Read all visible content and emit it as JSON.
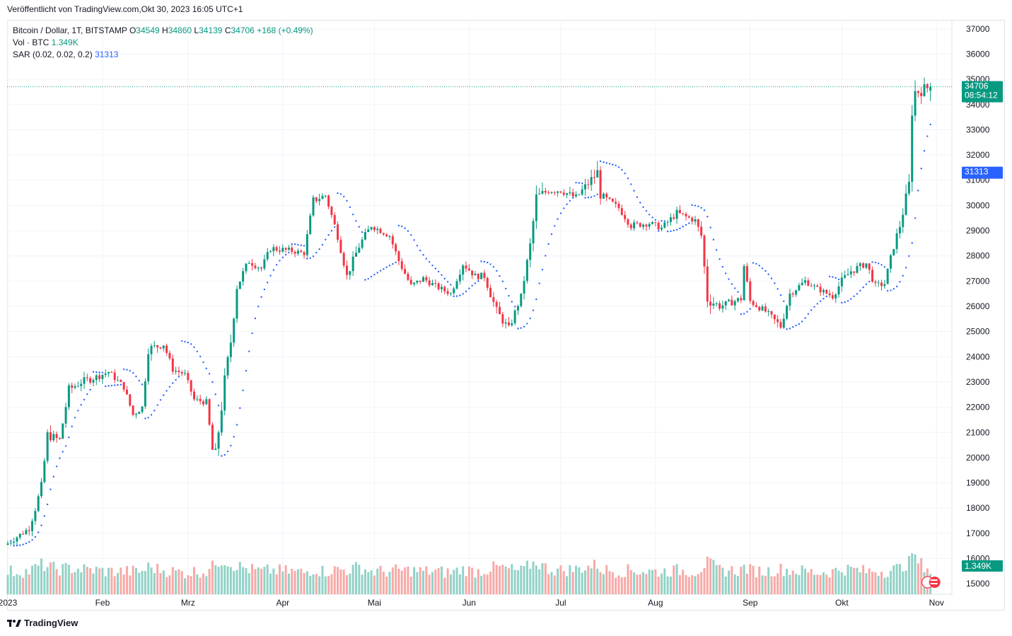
{
  "header": {
    "published": "Veröffentlicht von TradingView.com,Okt 30, 2023 16:05 UTC+1"
  },
  "legend": {
    "symbol": "Bitcoin / Dollar, 1T, BITSTAMP",
    "open_label": "O",
    "open": "34549",
    "high_label": "H",
    "high": "34860",
    "low_label": "L",
    "low": "34139",
    "close_label": "C",
    "close": "34706",
    "change": "+168 (+0.49%)",
    "vol_label": "Vol · BTC",
    "vol_value": "1.349K",
    "sar_label": "SAR (0.02, 0.02, 0.2)",
    "sar_value": "31313"
  },
  "price_labels": {
    "last": "34706",
    "countdown": "08:54:12",
    "sar": "31313",
    "volume": "1.349K"
  },
  "footer": {
    "brand": "TradingView"
  },
  "colors": {
    "up": "#089981",
    "down": "#f23645",
    "vol_up": "#92d2c7",
    "vol_down": "#f7a9a7",
    "sar": "#2962ff"
  },
  "chart_data": {
    "type": "candlestick",
    "title": "Bitcoin / Dollar, 1T, BITSTAMP",
    "y_ticks": [
      15000,
      16000,
      17000,
      18000,
      19000,
      20000,
      21000,
      22000,
      23000,
      24000,
      25000,
      26000,
      27000,
      28000,
      29000,
      30000,
      31000,
      32000,
      33000,
      34000,
      35000,
      36000,
      37000
    ],
    "x_ticks": [
      "2023",
      "Feb",
      "Mrz",
      "Apr",
      "Mai",
      "Jun",
      "Jul",
      "Aug",
      "Sep",
      "Okt",
      "Nov"
    ],
    "ylim": [
      14500,
      37500
    ],
    "anchors": [
      [
        "2023-01-01",
        16600,
        30
      ],
      [
        "2023-01-08",
        17200,
        30
      ],
      [
        "2023-01-12",
        18800,
        60
      ],
      [
        "2023-01-14",
        20900,
        50
      ],
      [
        "2023-01-18",
        20700,
        40
      ],
      [
        "2023-01-21",
        22700,
        45
      ],
      [
        "2023-01-25",
        23000,
        40
      ],
      [
        "2023-01-30",
        23200,
        35
      ],
      [
        "2023-02-03",
        23400,
        30
      ],
      [
        "2023-02-08",
        22800,
        30
      ],
      [
        "2023-02-11",
        21700,
        30
      ],
      [
        "2023-02-14",
        22000,
        30
      ],
      [
        "2023-02-16",
        24300,
        50
      ],
      [
        "2023-02-21",
        24500,
        35
      ],
      [
        "2023-02-24",
        23500,
        30
      ],
      [
        "2023-02-28",
        23300,
        25
      ],
      [
        "2023-03-03",
        22300,
        30
      ],
      [
        "2023-03-07",
        22200,
        30
      ],
      [
        "2023-03-09",
        20300,
        50
      ],
      [
        "2023-03-10",
        20100,
        70
      ],
      [
        "2023-03-13",
        23000,
        80
      ],
      [
        "2023-03-15",
        24600,
        60
      ],
      [
        "2023-03-17",
        26800,
        55
      ],
      [
        "2023-03-21",
        27800,
        40
      ],
      [
        "2023-03-25",
        27500,
        30
      ],
      [
        "2023-03-28",
        28300,
        35
      ],
      [
        "2023-04-04",
        28200,
        30
      ],
      [
        "2023-04-08",
        28100,
        25
      ],
      [
        "2023-04-11",
        30200,
        40
      ],
      [
        "2023-04-15",
        30400,
        30
      ],
      [
        "2023-04-19",
        28800,
        40
      ],
      [
        "2023-04-22",
        27200,
        35
      ],
      [
        "2023-04-26",
        28400,
        50
      ],
      [
        "2023-04-30",
        29200,
        30
      ],
      [
        "2023-05-06",
        28800,
        30
      ],
      [
        "2023-05-09",
        27800,
        35
      ],
      [
        "2023-05-13",
        26800,
        35
      ],
      [
        "2023-05-17",
        27100,
        30
      ],
      [
        "2023-05-21",
        26800,
        30
      ],
      [
        "2023-05-26",
        26500,
        25
      ],
      [
        "2023-05-30",
        27700,
        40
      ],
      [
        "2023-06-03",
        27200,
        30
      ],
      [
        "2023-06-06",
        27200,
        35
      ],
      [
        "2023-06-10",
        25800,
        50
      ],
      [
        "2023-06-14",
        25100,
        40
      ],
      [
        "2023-06-18",
        26400,
        30
      ],
      [
        "2023-06-21",
        28400,
        60
      ],
      [
        "2023-06-23",
        30300,
        70
      ],
      [
        "2023-06-27",
        30600,
        40
      ],
      [
        "2023-07-01",
        30600,
        35
      ],
      [
        "2023-07-06",
        30300,
        40
      ],
      [
        "2023-07-13",
        31300,
        60
      ],
      [
        "2023-07-14",
        30400,
        40
      ],
      [
        "2023-07-20",
        29900,
        30
      ],
      [
        "2023-07-24",
        29200,
        35
      ],
      [
        "2023-07-30",
        29300,
        30
      ],
      [
        "2023-08-03",
        29100,
        30
      ],
      [
        "2023-08-08",
        29700,
        35
      ],
      [
        "2023-08-14",
        29400,
        30
      ],
      [
        "2023-08-16",
        28800,
        45
      ],
      [
        "2023-08-18",
        26300,
        70
      ],
      [
        "2023-08-22",
        26000,
        35
      ],
      [
        "2023-08-29",
        26300,
        35
      ],
      [
        "2023-08-30",
        27600,
        50
      ],
      [
        "2023-09-01",
        26200,
        35
      ],
      [
        "2023-09-06",
        25800,
        30
      ],
      [
        "2023-09-11",
        25200,
        40
      ],
      [
        "2023-09-14",
        26500,
        35
      ],
      [
        "2023-09-19",
        27000,
        30
      ],
      [
        "2023-09-23",
        26700,
        25
      ],
      [
        "2023-09-28",
        26400,
        30
      ],
      [
        "2023-10-01",
        27000,
        40
      ],
      [
        "2023-10-04",
        27400,
        40
      ],
      [
        "2023-10-09",
        27700,
        30
      ],
      [
        "2023-10-12",
        26800,
        35
      ],
      [
        "2023-10-15",
        26900,
        30
      ],
      [
        "2023-10-18",
        28400,
        40
      ],
      [
        "2023-10-20",
        29200,
        45
      ],
      [
        "2023-10-23",
        30800,
        70
      ],
      [
        "2023-10-24",
        33900,
        120
      ],
      [
        "2023-10-25",
        34500,
        80
      ],
      [
        "2023-10-30",
        34706,
        40
      ]
    ],
    "ohlc_last": {
      "date": "2023-10-30",
      "open": 34549,
      "high": 34860,
      "low": 34139,
      "close": 34706
    },
    "sar_last": 31313,
    "volume_last": 1349
  }
}
